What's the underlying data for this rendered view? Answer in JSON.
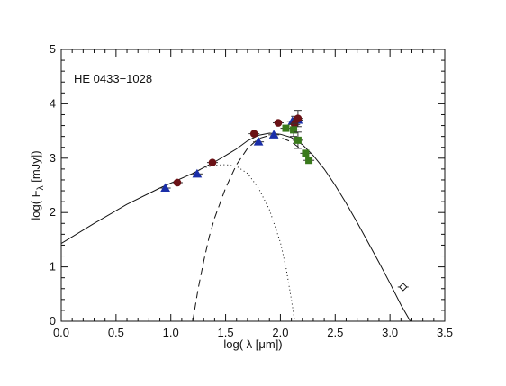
{
  "chart_data": {
    "type": "scatter",
    "title": "",
    "annotation": "HE 0433−1028",
    "xlabel": {
      "prefix": "log( λ [",
      "mu": "μ",
      "suffix": "m])"
    },
    "ylabel": {
      "prefix": "log( F",
      "sub": "λ",
      "suffix": " [mJy])"
    },
    "xlim": [
      0.0,
      3.5
    ],
    "ylim": [
      0,
      5
    ],
    "x_ticks": [
      "0.0",
      "0.5",
      "1.0",
      "1.5",
      "2.0",
      "2.5",
      "3.0",
      "3.5"
    ],
    "y_ticks": [
      "0",
      "1",
      "2",
      "3",
      "4",
      "5"
    ],
    "grid": false,
    "colors": {
      "blue": "#1a2ea8",
      "red": "#6b1216",
      "green": "#3a7a1c",
      "curve": "#111111"
    },
    "series": [
      {
        "marker": "triangle",
        "color": "blue",
        "points": [
          {
            "x": 0.95,
            "y": 2.45
          },
          {
            "x": 1.24,
            "y": 2.71
          },
          {
            "x": 1.8,
            "y": 3.3
          },
          {
            "x": 1.94,
            "y": 3.43
          },
          {
            "x": 2.11,
            "y": 3.68
          },
          {
            "x": 2.16,
            "y": 3.7
          }
        ]
      },
      {
        "marker": "circle",
        "color": "red",
        "points": [
          {
            "x": 1.06,
            "y": 2.55
          },
          {
            "x": 1.38,
            "y": 2.92
          },
          {
            "x": 1.76,
            "y": 3.45
          },
          {
            "x": 1.98,
            "y": 3.65
          },
          {
            "x": 2.13,
            "y": 3.62,
            "err": 0.15
          },
          {
            "x": 2.16,
            "y": 3.73,
            "err": 0.15
          }
        ]
      },
      {
        "marker": "square",
        "color": "green",
        "points": [
          {
            "x": 2.05,
            "y": 3.55
          },
          {
            "x": 2.12,
            "y": 3.52,
            "err": 0.12
          },
          {
            "x": 2.16,
            "y": 3.33,
            "err": 0.15
          },
          {
            "x": 2.23,
            "y": 3.09
          },
          {
            "x": 2.26,
            "y": 2.96
          }
        ]
      },
      {
        "marker": "open-diamond",
        "color": "curve",
        "points": [
          {
            "x": 3.12,
            "y": 0.63
          }
        ]
      }
    ],
    "model_curves": [
      {
        "style": "solid",
        "points": [
          [
            0.0,
            1.43
          ],
          [
            0.3,
            1.8
          ],
          [
            0.6,
            2.15
          ],
          [
            0.9,
            2.45
          ],
          [
            1.2,
            2.72
          ],
          [
            1.4,
            2.93
          ],
          [
            1.5,
            3.05
          ],
          [
            1.6,
            3.17
          ],
          [
            1.7,
            3.32
          ],
          [
            1.8,
            3.42
          ],
          [
            1.9,
            3.46
          ],
          [
            2.0,
            3.44
          ],
          [
            2.1,
            3.38
          ],
          [
            2.2,
            3.25
          ],
          [
            2.3,
            3.05
          ],
          [
            2.4,
            2.8
          ],
          [
            2.5,
            2.5
          ],
          [
            2.6,
            2.17
          ],
          [
            2.7,
            1.82
          ],
          [
            2.8,
            1.45
          ],
          [
            2.9,
            1.08
          ],
          [
            3.0,
            0.7
          ],
          [
            3.1,
            0.3
          ],
          [
            3.2,
            -0.05
          ],
          [
            3.3,
            -0.4
          ]
        ]
      },
      {
        "style": "dashed",
        "points": [
          [
            1.2,
            0.0
          ],
          [
            1.25,
            0.6
          ],
          [
            1.3,
            1.1
          ],
          [
            1.35,
            1.55
          ],
          [
            1.4,
            1.9
          ],
          [
            1.5,
            2.45
          ],
          [
            1.6,
            2.88
          ],
          [
            1.7,
            3.18
          ],
          [
            1.8,
            3.36
          ],
          [
            1.9,
            3.42
          ],
          [
            2.0,
            3.38
          ],
          [
            2.1,
            3.3
          ],
          [
            2.2,
            3.15
          ]
        ]
      },
      {
        "style": "dotted",
        "points": [
          [
            1.2,
            2.72
          ],
          [
            1.3,
            2.82
          ],
          [
            1.4,
            2.87
          ],
          [
            1.5,
            2.88
          ],
          [
            1.6,
            2.85
          ],
          [
            1.7,
            2.72
          ],
          [
            1.8,
            2.45
          ],
          [
            1.9,
            2.05
          ],
          [
            2.0,
            1.45
          ],
          [
            2.05,
            1.0
          ],
          [
            2.1,
            0.4
          ],
          [
            2.13,
            0.0
          ]
        ]
      }
    ]
  }
}
